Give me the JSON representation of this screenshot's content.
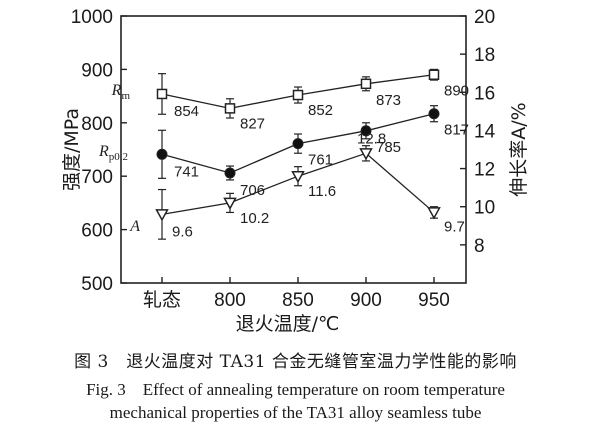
{
  "chart_data": {
    "type": "line",
    "categories": [
      "轧态",
      "800",
      "850",
      "900",
      "950"
    ],
    "xlabel": "退火温度/℃",
    "ylabel_left": "强度/MPa",
    "ylabel_right": "伸长率A/%",
    "ylim_left": [
      500,
      1000
    ],
    "yticks_left": [
      500,
      600,
      700,
      800,
      900,
      1000
    ],
    "ylim_right": [
      6,
      20
    ],
    "yticks_right": [
      8,
      10,
      12,
      14,
      16,
      18,
      20
    ],
    "grid": false,
    "series": [
      {
        "name": "Rm",
        "label_main": "R",
        "label_sub": "m",
        "axis": "left",
        "marker": "open-square",
        "values": [
          854,
          827,
          852,
          873,
          890
        ],
        "labels": [
          "854",
          "827",
          "852",
          "873",
          "890"
        ],
        "error": [
          38,
          18,
          15,
          13,
          10
        ]
      },
      {
        "name": "Rp0.2",
        "label_main": "R",
        "label_sub": "p0.2",
        "axis": "left",
        "marker": "filled-circle",
        "values": [
          741,
          706,
          761,
          785,
          817
        ],
        "labels": [
          "741",
          "706",
          "761",
          "785",
          "817"
        ],
        "error": [
          45,
          13,
          18,
          15,
          15
        ]
      },
      {
        "name": "A",
        "label_main": "A",
        "label_sub": "",
        "axis": "right",
        "marker": "open-triangle-down",
        "values": [
          9.6,
          10.2,
          11.6,
          12.8,
          9.7
        ],
        "labels": [
          "9.6",
          "10.2",
          "11.6",
          "12.8",
          "9.7"
        ],
        "error": [
          1.3,
          0.5,
          0.5,
          0.4,
          0.3
        ]
      }
    ]
  },
  "caption": {
    "zh": "图 3　退火温度对 TA31 合金无缝管室温力学性能的影响",
    "en_line1": "Fig. 3　Effect of annealing temperature on room temperature",
    "en_line2": "mechanical properties of the TA31 alloy seamless tube"
  }
}
